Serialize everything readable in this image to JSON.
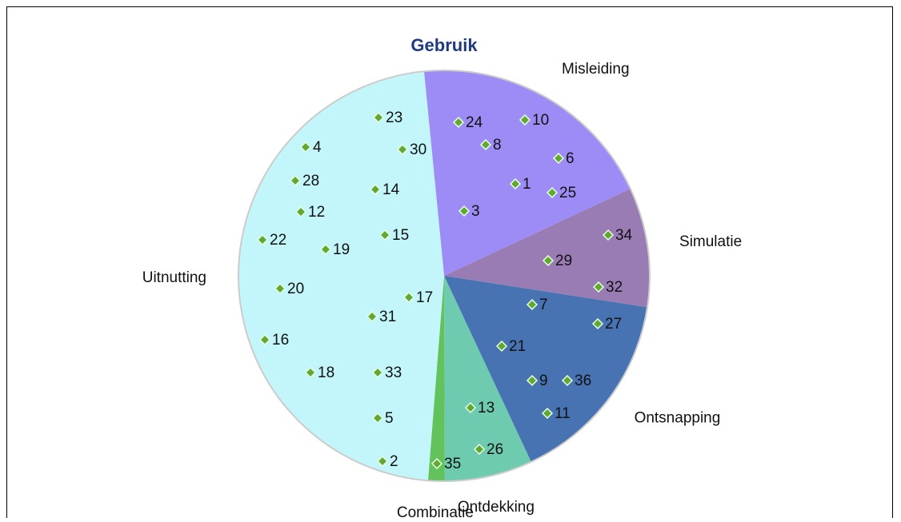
{
  "chart_data": {
    "type": "pie",
    "title": "Gebruik",
    "categories": [
      "Misleiding",
      "Simulatie",
      "Ontsnapping",
      "Ontdekking",
      "Combinatie",
      "Uitnutting"
    ],
    "values": [
      19.6,
      9.4,
      15.6,
      6.9,
      1.3,
      47.2
    ],
    "colors": [
      "#9d8cf5",
      "#9a7cb5",
      "#4773b3",
      "#6fcbb0",
      "#62c25c",
      "#c2f6fa"
    ],
    "start_angle": 354.4,
    "points": {
      "type": "scatter",
      "color": "#5fa832",
      "xlim": [
        -257,
        257
      ],
      "ylim": [
        -257,
        257
      ],
      "labels": [
        23,
        4,
        30,
        24,
        10,
        8,
        6,
        28,
        14,
        1,
        25,
        12,
        3,
        22,
        15,
        34,
        19,
        29,
        20,
        17,
        32,
        7,
        31,
        27,
        16,
        21,
        18,
        33,
        9,
        36,
        13,
        11,
        5,
        26,
        2,
        35
      ],
      "x": [
        -82,
        -173,
        -52,
        18,
        101,
        52,
        143,
        -186,
        -86,
        89,
        135,
        -179,
        25,
        -227,
        -74,
        205,
        -148,
        130,
        -205,
        -44,
        193,
        110,
        -90,
        192,
        -224,
        72,
        -167,
        -83,
        110,
        154,
        33,
        129,
        -83,
        44,
        -77,
        -9
      ],
      "y": [
        198,
        161,
        158,
        192,
        195,
        164,
        147,
        119,
        108,
        115,
        104,
        80,
        81,
        45,
        51,
        51,
        33,
        19,
        -16,
        -27,
        -14,
        -36,
        -51,
        -60,
        -80,
        -88,
        -121,
        -121,
        -131,
        -131,
        -165,
        -172,
        -178,
        -217,
        -232,
        -235
      ]
    }
  }
}
